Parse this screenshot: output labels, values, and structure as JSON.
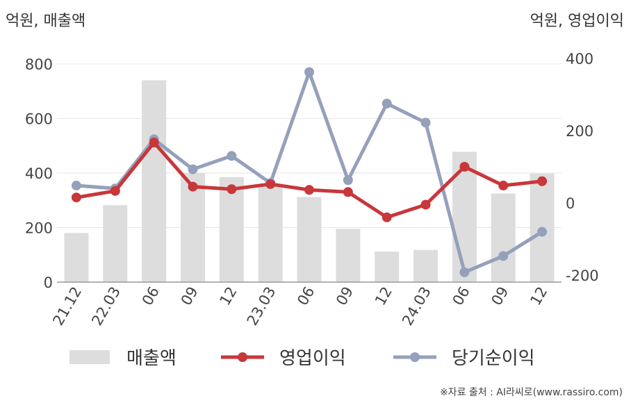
{
  "chart_data": {
    "type": "bar+line",
    "categories": [
      "21.12",
      "22.03",
      "06",
      "09",
      "12",
      "23.03",
      "06",
      "09",
      "12",
      "24.03",
      "06",
      "09",
      "12"
    ],
    "left_axis": {
      "unit_label": "억원, 매출액",
      "ylim": [
        0,
        800
      ],
      "ticks": [
        0,
        200,
        400,
        600,
        800
      ]
    },
    "right_axis": {
      "unit_label": "억원, 영업이익",
      "ylim": [
        -200,
        400
      ],
      "ticks": [
        -200,
        0,
        200,
        400
      ]
    },
    "series": [
      {
        "name": "매출액",
        "type": "bar",
        "axis": "left",
        "color": "#dddddd",
        "values": [
          180,
          282,
          740,
          400,
          385,
          360,
          312,
          195,
          112,
          118,
          478,
          325,
          398
        ]
      },
      {
        "name": "영업이익",
        "type": "line",
        "axis": "right",
        "color": "#c8373a",
        "values": [
          15,
          33,
          167,
          45,
          38,
          52,
          36,
          30,
          -40,
          -5,
          100,
          48,
          60
        ]
      },
      {
        "name": "당기순이익",
        "type": "line",
        "axis": "right",
        "color": "#95a0bb",
        "values": [
          48,
          40,
          176,
          93,
          130,
          55,
          362,
          63,
          275,
          222,
          -192,
          -147,
          -80
        ]
      }
    ],
    "grid": true,
    "legend_position": "bottom"
  },
  "source_text": "※자료 출처 : AI라씨로(www.rassiro.com)"
}
